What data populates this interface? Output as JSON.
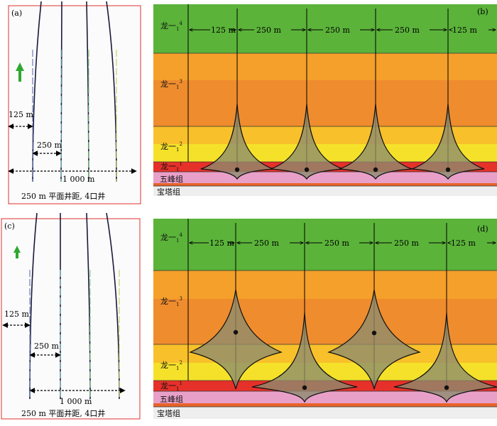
{
  "panels": {
    "a": {
      "tag": "(a)",
      "caption": "250 m 平面井距, 4口井",
      "dims": [
        {
          "id": "d125",
          "label": "125 m"
        },
        {
          "id": "d250",
          "label": "250 m"
        },
        {
          "id": "d1000",
          "label": "1 000 m"
        }
      ],
      "well_colors": [
        "#6a7fbf",
        "#8ed0d0",
        "#8fd08f",
        "#c8d26a"
      ]
    },
    "b": {
      "tag": "(b)",
      "spacing_labels": [
        "125 m",
        "250 m",
        "250 m",
        "250 m",
        "125 m"
      ],
      "layers": [
        {
          "id": "long1-4",
          "base": "龙一",
          "sub": "1",
          "sup": "4",
          "color": "#5bb33a"
        },
        {
          "id": "long1-3",
          "base": "龙一",
          "sub": "1",
          "sup": "3",
          "color": "#ef8c2e"
        },
        {
          "id": "long1-2",
          "base": "龙一",
          "sub": "1",
          "sup": "2",
          "color": "#f5e12a"
        },
        {
          "id": "long1-1",
          "base": "龙一",
          "sub": "1",
          "sup": "1",
          "color": "#e6302a"
        },
        {
          "id": "wufeng",
          "label": "五峰组",
          "color": "#e8a0c8"
        },
        {
          "id": "baota",
          "label": "宝塔组",
          "color": "#eeeeee"
        }
      ]
    },
    "c": {
      "tag": "(c)",
      "caption": "250 m 平面井距, 4口井",
      "dims": [
        {
          "id": "d125",
          "label": "125 m"
        },
        {
          "id": "d250",
          "label": "250 m"
        },
        {
          "id": "d1000",
          "label": "1 000 m"
        }
      ]
    },
    "d": {
      "tag": "(d)",
      "spacing_labels": [
        "125 m",
        "250 m",
        "250 m",
        "250 m",
        "125 m"
      ],
      "layers": [
        {
          "id": "long1-4",
          "base": "龙一",
          "sub": "1",
          "sup": "4"
        },
        {
          "id": "long1-3",
          "base": "龙一",
          "sub": "1",
          "sup": "3"
        },
        {
          "id": "long1-2",
          "base": "龙一",
          "sub": "1",
          "sup": "2"
        },
        {
          "id": "long1-1",
          "base": "龙一",
          "sub": "1",
          "sup": "1"
        },
        {
          "id": "wufeng",
          "label": "五峰组"
        },
        {
          "id": "baota",
          "label": "宝塔组"
        }
      ]
    }
  }
}
